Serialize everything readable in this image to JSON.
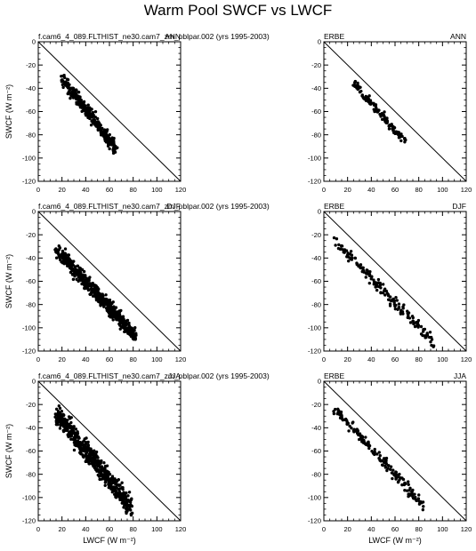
{
  "title": "Warm Pool SWCF vs LWCF",
  "chart_data": [
    {
      "type": "scatter",
      "left_label": "f.cam6_4_089.FLTHIST_ne30.cam7_zm_pblpar.002 (yrs 1995-2003)",
      "right_label": "ANN",
      "xlabel": "",
      "ylabel": "SWCF (W m⁻²)",
      "xlim": [
        0,
        120
      ],
      "ylim": [
        -120,
        0
      ],
      "xticks": [
        "0",
        "20",
        "40",
        "60",
        "80",
        "100",
        "120"
      ],
      "yticks": [
        "-120",
        "-100",
        "-80",
        "-60",
        "-40",
        "-20",
        "0"
      ],
      "reference_line": [
        [
          0,
          0
        ],
        [
          120,
          -120
        ]
      ],
      "cloud": {
        "x": [
          20,
          65
        ],
        "y_mid": [
          -31,
          -92
        ],
        "spread": 8,
        "n": 320,
        "seed": 11
      }
    },
    {
      "type": "scatter",
      "left_label": "ERBE",
      "right_label": "ANN",
      "xlabel": "",
      "ylabel": "",
      "xlim": [
        0,
        120
      ],
      "ylim": [
        -120,
        0
      ],
      "xticks": [
        "0",
        "20",
        "40",
        "60",
        "80",
        "100",
        "120"
      ],
      "yticks": [
        "-120",
        "-100",
        "-80",
        "-60",
        "-40",
        "-20",
        "0"
      ],
      "reference_line": [
        [
          0,
          0
        ],
        [
          120,
          -120
        ]
      ],
      "cloud": {
        "x": [
          25,
          70
        ],
        "y_mid": [
          -35,
          -88
        ],
        "spread": 5,
        "n": 110,
        "seed": 23
      }
    },
    {
      "type": "scatter",
      "left_label": "f.cam6_4_089.FLTHIST_ne30.cam7_zm_pblpar.002 (yrs 1995-2003)",
      "right_label": "DJF",
      "xlabel": "",
      "ylabel": "SWCF (W m⁻²)",
      "xlim": [
        0,
        120
      ],
      "ylim": [
        -120,
        0
      ],
      "xticks": [
        "0",
        "20",
        "40",
        "60",
        "80",
        "100",
        "120"
      ],
      "yticks": [
        "-120",
        "-100",
        "-80",
        "-60",
        "-40",
        "-20",
        "0"
      ],
      "reference_line": [
        [
          0,
          0
        ],
        [
          120,
          -120
        ]
      ],
      "cloud": {
        "x": [
          15,
          82
        ],
        "y_mid": [
          -32,
          -107
        ],
        "spread": 9,
        "n": 520,
        "seed": 37
      }
    },
    {
      "type": "scatter",
      "left_label": "ERBE",
      "right_label": "DJF",
      "xlabel": "",
      "ylabel": "",
      "xlim": [
        0,
        120
      ],
      "ylim": [
        -120,
        0
      ],
      "xticks": [
        "0",
        "20",
        "40",
        "60",
        "80",
        "100",
        "120"
      ],
      "yticks": [
        "-120",
        "-100",
        "-80",
        "-60",
        "-40",
        "-20",
        "0"
      ],
      "reference_line": [
        [
          0,
          0
        ],
        [
          120,
          -120
        ]
      ],
      "cloud": {
        "x": [
          8,
          92
        ],
        "y_mid": [
          -24,
          -112
        ],
        "spread": 7,
        "n": 170,
        "seed": 51
      }
    },
    {
      "type": "scatter",
      "left_label": "f.cam6_4_089.FLTHIST_ne30.cam7_zm_pblpar.002 (yrs 1995-2003)",
      "right_label": "JJA",
      "xlabel": "LWCF (W m⁻²)",
      "ylabel": "SWCF (W m⁻²)",
      "xlim": [
        0,
        120
      ],
      "ylim": [
        -120,
        0
      ],
      "xticks": [
        "0",
        "20",
        "40",
        "60",
        "80",
        "100",
        "120"
      ],
      "yticks": [
        "-120",
        "-100",
        "-80",
        "-60",
        "-40",
        "-20",
        "0"
      ],
      "reference_line": [
        [
          0,
          0
        ],
        [
          120,
          -120
        ]
      ],
      "cloud": {
        "x": [
          15,
          78
        ],
        "y_mid": [
          -27,
          -108
        ],
        "spread": 12,
        "n": 560,
        "seed": 67
      }
    },
    {
      "type": "scatter",
      "left_label": "ERBE",
      "right_label": "JJA",
      "xlabel": "LWCF (W m⁻²)",
      "ylabel": "",
      "xlim": [
        0,
        120
      ],
      "ylim": [
        -120,
        0
      ],
      "xticks": [
        "0",
        "20",
        "40",
        "60",
        "80",
        "100",
        "120"
      ],
      "yticks": [
        "-120",
        "-100",
        "-80",
        "-60",
        "-40",
        "-20",
        "0"
      ],
      "reference_line": [
        [
          0,
          0
        ],
        [
          120,
          -120
        ]
      ],
      "cloud": {
        "x": [
          8,
          85
        ],
        "y_mid": [
          -22,
          -108
        ],
        "spread": 6,
        "n": 160,
        "seed": 79
      }
    }
  ]
}
